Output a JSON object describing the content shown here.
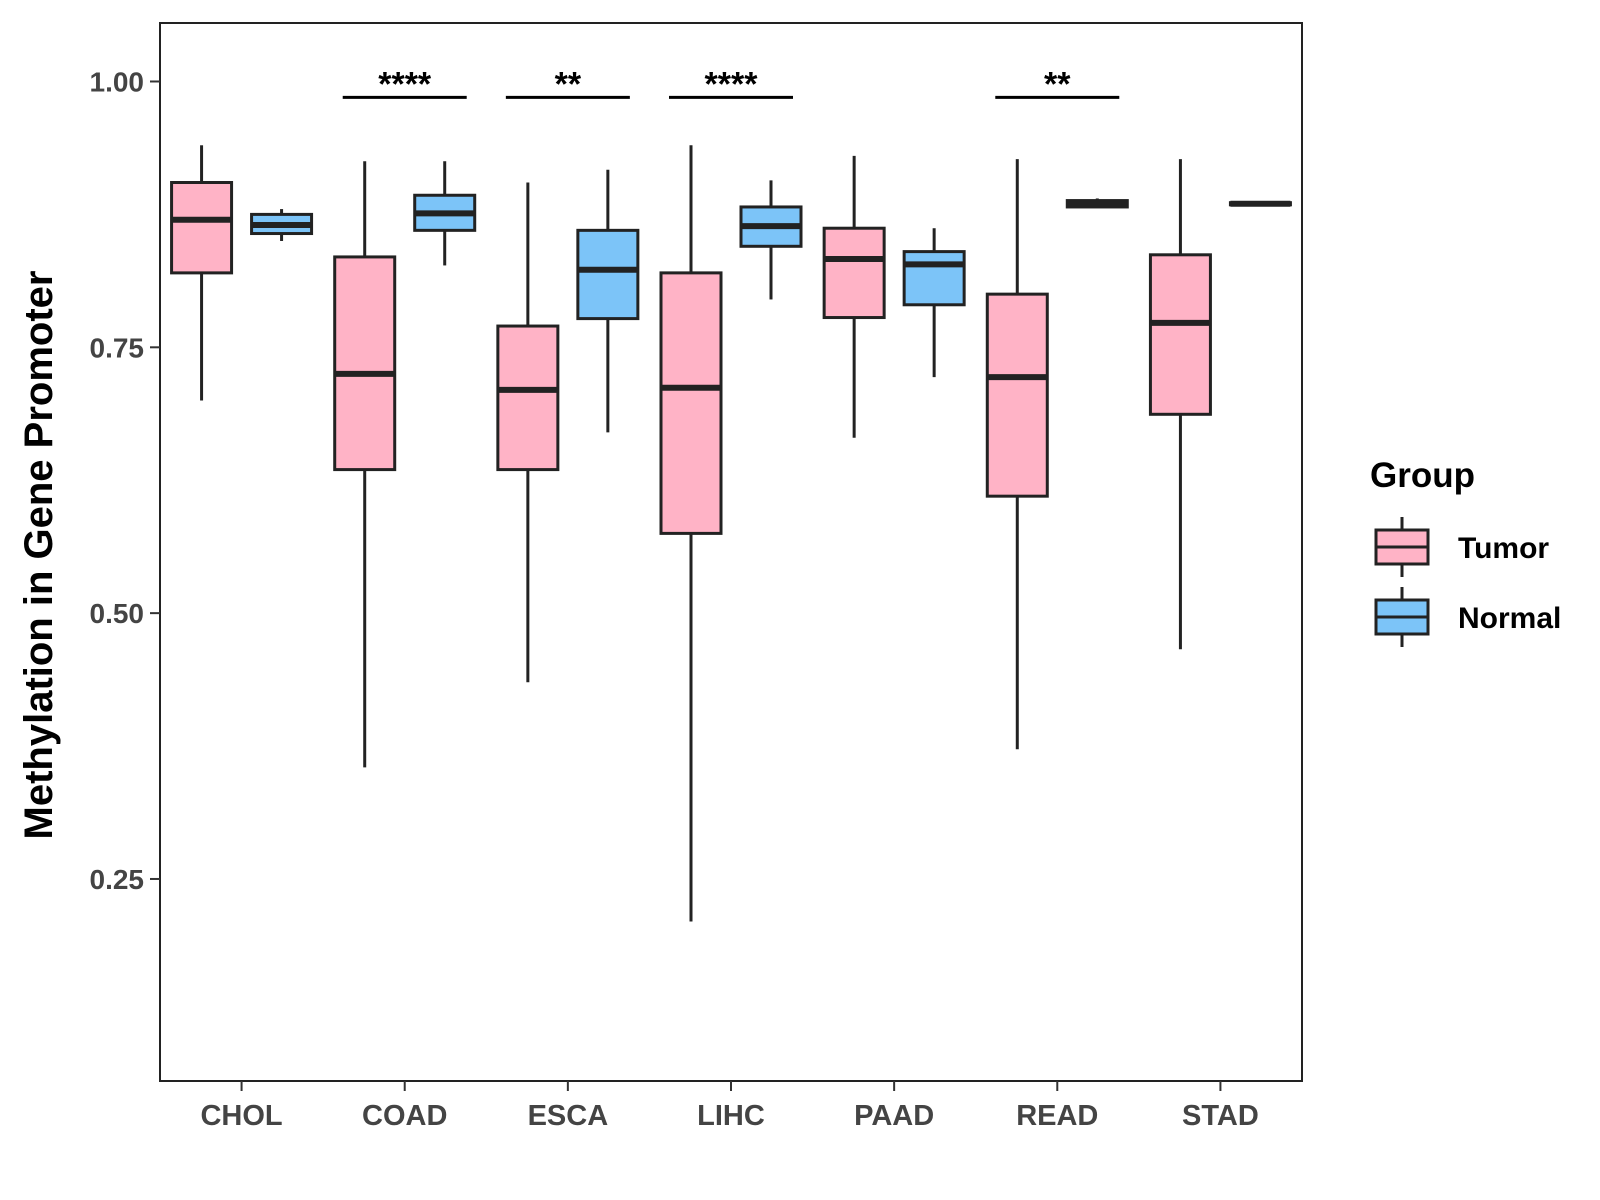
{
  "chart_data": {
    "type": "boxplot",
    "title": "",
    "xlabel": "",
    "ylabel": "Methylation in Gene Promoter",
    "ylim": [
      0.06,
      1.055
    ],
    "yticks": [
      0.25,
      0.5,
      0.75,
      1.0
    ],
    "ytick_labels": [
      "0.25",
      "0.50",
      "0.75",
      "1.00"
    ],
    "grid": false,
    "categories": [
      "CHOL",
      "COAD",
      "ESCA",
      "LIHC",
      "PAAD",
      "READ",
      "STAD"
    ],
    "legend": {
      "title": "Group",
      "position": "right",
      "entries": [
        {
          "name": "Tumor",
          "color": "#FFB3C6"
        },
        {
          "name": "Normal",
          "color": "#7CC4F8"
        }
      ]
    },
    "series": [
      {
        "name": "Tumor",
        "color": "#FFB3C6",
        "boxes": [
          {
            "category": "CHOL",
            "whisker_low": 0.7,
            "q1": 0.82,
            "median": 0.87,
            "q3": 0.905,
            "whisker_high": 0.94
          },
          {
            "category": "COAD",
            "whisker_low": 0.355,
            "q1": 0.635,
            "median": 0.725,
            "q3": 0.835,
            "whisker_high": 0.925
          },
          {
            "category": "ESCA",
            "whisker_low": 0.435,
            "q1": 0.635,
            "median": 0.71,
            "q3": 0.77,
            "whisker_high": 0.905
          },
          {
            "category": "LIHC",
            "whisker_low": 0.21,
            "q1": 0.575,
            "median": 0.712,
            "q3": 0.82,
            "whisker_high": 0.94
          },
          {
            "category": "PAAD",
            "whisker_low": 0.665,
            "q1": 0.778,
            "median": 0.833,
            "q3": 0.862,
            "whisker_high": 0.93
          },
          {
            "category": "READ",
            "whisker_low": 0.372,
            "q1": 0.61,
            "median": 0.722,
            "q3": 0.8,
            "whisker_high": 0.927
          },
          {
            "category": "STAD",
            "whisker_low": 0.466,
            "q1": 0.687,
            "median": 0.773,
            "q3": 0.837,
            "whisker_high": 0.927
          }
        ]
      },
      {
        "name": "Normal",
        "color": "#7CC4F8",
        "boxes": [
          {
            "category": "CHOL",
            "whisker_low": 0.85,
            "q1": 0.857,
            "median": 0.865,
            "q3": 0.875,
            "whisker_high": 0.88
          },
          {
            "category": "COAD",
            "whisker_low": 0.827,
            "q1": 0.86,
            "median": 0.876,
            "q3": 0.893,
            "whisker_high": 0.925
          },
          {
            "category": "ESCA",
            "whisker_low": 0.67,
            "q1": 0.777,
            "median": 0.823,
            "q3": 0.86,
            "whisker_high": 0.917
          },
          {
            "category": "LIHC",
            "whisker_low": 0.795,
            "q1": 0.845,
            "median": 0.864,
            "q3": 0.882,
            "whisker_high": 0.907
          },
          {
            "category": "PAAD",
            "whisker_low": 0.722,
            "q1": 0.79,
            "median": 0.828,
            "q3": 0.84,
            "whisker_high": 0.862
          },
          {
            "category": "READ",
            "whisker_low": 0.881,
            "q1": 0.882,
            "median": 0.885,
            "q3": 0.888,
            "whisker_high": 0.89
          },
          {
            "category": "STAD",
            "whisker_low": 0.884,
            "q1": 0.884,
            "median": 0.885,
            "q3": 0.886,
            "whisker_high": 0.886
          }
        ]
      }
    ],
    "annotations": [
      {
        "category": "COAD",
        "label": "****"
      },
      {
        "category": "ESCA",
        "label": "**"
      },
      {
        "category": "LIHC",
        "label": "****"
      },
      {
        "category": "READ",
        "label": "**"
      }
    ],
    "significance_level_y": 0.985
  }
}
